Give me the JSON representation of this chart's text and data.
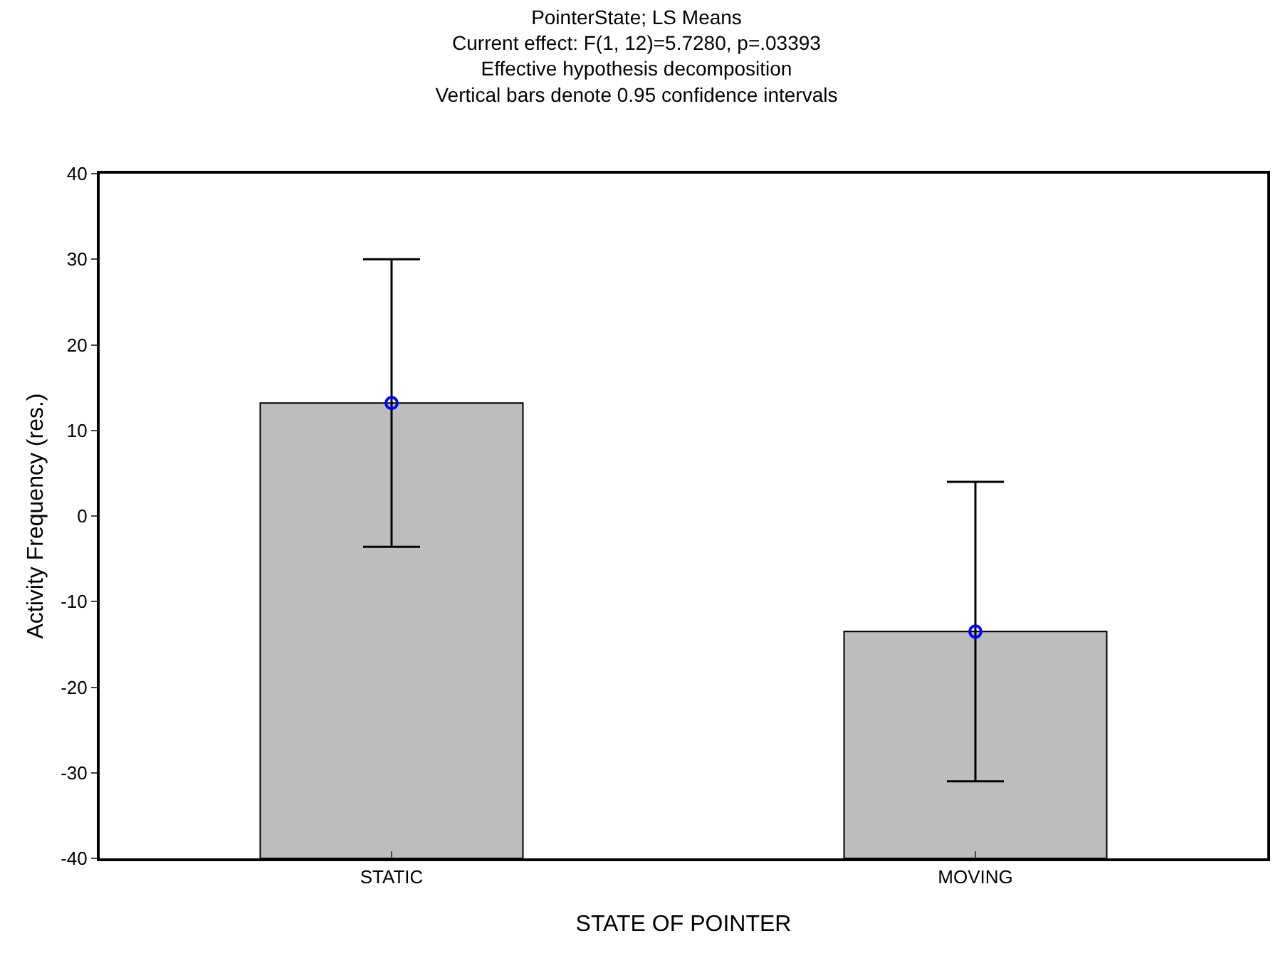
{
  "chart_data": {
    "type": "bar",
    "title": "PointerState; LS Means",
    "subtitle": "Current effect: F(1, 12)=5.7280, p=.03393\nEffective hypothesis decomposition\nVertical bars denote 0.95 confidence intervals",
    "xlabel": "STATE OF POINTER",
    "ylabel": "Activity Frequency (res.)",
    "categories": [
      "STATIC",
      "MOVING"
    ],
    "series": [
      {
        "color": "#bdbdbd",
        "values": [
          53.2,
          26.5
        ],
        "base": [
          -40,
          -40
        ]
      },
      {
        "type": "scatter",
        "color": "#0000ff",
        "marker": "circle",
        "values": [
          13.2,
          -13.5
        ],
        "errors": [
          [
            -3.6,
            30.0
          ],
          [
            -31.0,
            4.0
          ]
        ]
      }
    ],
    "ylim": [
      -40,
      40
    ],
    "yticks": [
      -40,
      -30,
      -20,
      -10,
      0,
      10,
      20,
      30,
      40
    ]
  }
}
